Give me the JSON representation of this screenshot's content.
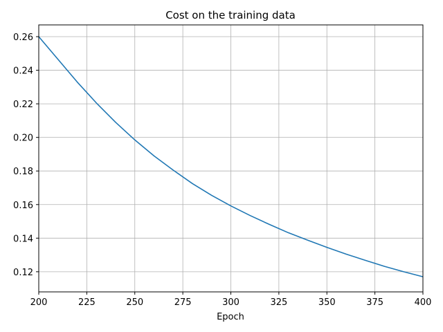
{
  "chart_data": {
    "type": "line",
    "title": "Cost on the training data",
    "xlabel": "Epoch",
    "ylabel": "",
    "xlim": [
      200,
      400
    ],
    "ylim": [
      0.108,
      0.267
    ],
    "grid": true,
    "x_ticks": [
      200,
      225,
      250,
      275,
      300,
      325,
      350,
      375,
      400
    ],
    "y_ticks": [
      0.12,
      0.14,
      0.16,
      0.18,
      0.2,
      0.22,
      0.24,
      0.26
    ],
    "y_tick_labels": [
      "0.12",
      "0.14",
      "0.16",
      "0.18",
      "0.20",
      "0.22",
      "0.24",
      "0.26"
    ],
    "series": [
      {
        "color": "#1f77b4",
        "x": [
          200,
          210,
          220,
          230,
          240,
          250,
          260,
          270,
          280,
          290,
          300,
          310,
          320,
          330,
          340,
          350,
          360,
          370,
          380,
          390,
          400
        ],
        "y": [
          0.26,
          0.2465,
          0.233,
          0.2205,
          0.209,
          0.1985,
          0.189,
          0.1805,
          0.1725,
          0.1655,
          0.1592,
          0.1535,
          0.1482,
          0.1432,
          0.1388,
          0.1345,
          0.1305,
          0.1268,
          0.1232,
          0.12,
          0.117
        ]
      }
    ]
  }
}
